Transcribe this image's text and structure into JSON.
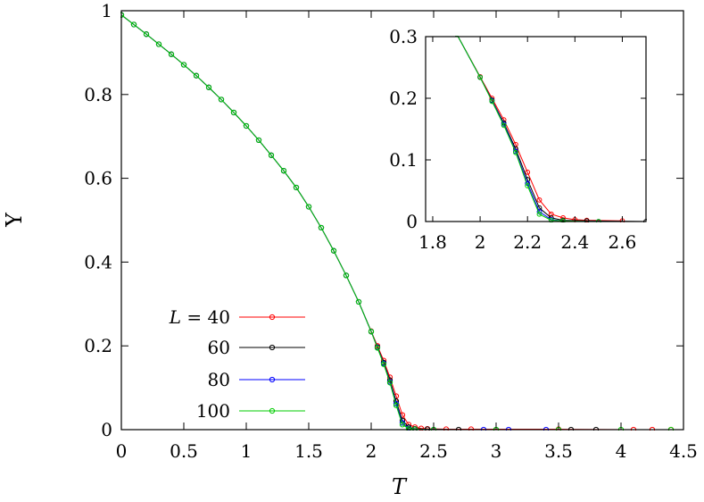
{
  "chart_data": [
    {
      "id": "main",
      "type": "line",
      "xlabel": "T",
      "ylabel": "Υ",
      "xlim": [
        0,
        4.5
      ],
      "ylim": [
        0,
        1
      ],
      "xticks": [
        0,
        0.5,
        1,
        1.5,
        2,
        2.5,
        3,
        3.5,
        4,
        4.5
      ],
      "yticks": [
        0,
        0.2,
        0.4,
        0.6,
        0.8,
        1
      ],
      "xtick_labels": [
        "0",
        "0.5",
        "1",
        "1.5",
        "2",
        "2.5",
        "3",
        "3.5",
        "4",
        "4.5"
      ],
      "ytick_labels": [
        "0",
        "0.2",
        "0.4",
        "0.6",
        "0.8",
        "1"
      ],
      "grid": false,
      "markers": "open-circle",
      "legend_position": "bottom-left",
      "legend_title": "L =",
      "series": [
        {
          "name": "40",
          "label": "L = 40",
          "color": "#ff0000",
          "points": [
            [
              0.0,
              0.99
            ],
            [
              0.1,
              0.967
            ],
            [
              0.2,
              0.944
            ],
            [
              0.3,
              0.92
            ],
            [
              0.4,
              0.896
            ],
            [
              0.5,
              0.871
            ],
            [
              0.6,
              0.845
            ],
            [
              0.7,
              0.817
            ],
            [
              0.8,
              0.788
            ],
            [
              0.9,
              0.757
            ],
            [
              1.0,
              0.725
            ],
            [
              1.1,
              0.691
            ],
            [
              1.2,
              0.655
            ],
            [
              1.3,
              0.618
            ],
            [
              1.4,
              0.578
            ],
            [
              1.5,
              0.532
            ],
            [
              1.6,
              0.482
            ],
            [
              1.7,
              0.427
            ],
            [
              1.8,
              0.368
            ],
            [
              1.9,
              0.305
            ],
            [
              2.0,
              0.235
            ],
            [
              2.05,
              0.2
            ],
            [
              2.1,
              0.165
            ],
            [
              2.15,
              0.125
            ],
            [
              2.2,
              0.08
            ],
            [
              2.25,
              0.035
            ],
            [
              2.3,
              0.012
            ],
            [
              2.35,
              0.006
            ],
            [
              2.4,
              0.003
            ],
            [
              2.45,
              0.002
            ],
            [
              2.6,
              0.001
            ],
            [
              2.8,
              0.001
            ],
            [
              3.5,
              0.001
            ],
            [
              4.1,
              0.0
            ],
            [
              4.25,
              0.0
            ],
            [
              4.4,
              0.0
            ]
          ]
        },
        {
          "name": "60",
          "color": "#000000",
          "points": [
            [
              0.0,
              0.99
            ],
            [
              0.1,
              0.967
            ],
            [
              0.2,
              0.944
            ],
            [
              0.3,
              0.92
            ],
            [
              0.4,
              0.896
            ],
            [
              0.5,
              0.871
            ],
            [
              0.6,
              0.845
            ],
            [
              0.7,
              0.817
            ],
            [
              0.8,
              0.788
            ],
            [
              0.9,
              0.757
            ],
            [
              1.0,
              0.725
            ],
            [
              1.1,
              0.691
            ],
            [
              1.2,
              0.655
            ],
            [
              1.3,
              0.618
            ],
            [
              1.4,
              0.578
            ],
            [
              1.5,
              0.532
            ],
            [
              1.6,
              0.482
            ],
            [
              1.7,
              0.427
            ],
            [
              1.8,
              0.368
            ],
            [
              1.9,
              0.305
            ],
            [
              2.0,
              0.234
            ],
            [
              2.05,
              0.197
            ],
            [
              2.1,
              0.16
            ],
            [
              2.15,
              0.118
            ],
            [
              2.2,
              0.068
            ],
            [
              2.25,
              0.022
            ],
            [
              2.3,
              0.006
            ],
            [
              2.35,
              0.002
            ],
            [
              2.45,
              0.001
            ],
            [
              2.7,
              0.0
            ],
            [
              3.0,
              0.0
            ],
            [
              3.6,
              0.0
            ],
            [
              3.8,
              0.0
            ]
          ]
        },
        {
          "name": "80",
          "color": "#0000ff",
          "points": [
            [
              0.0,
              0.99
            ],
            [
              0.1,
              0.967
            ],
            [
              0.2,
              0.944
            ],
            [
              0.3,
              0.92
            ],
            [
              0.4,
              0.896
            ],
            [
              0.5,
              0.871
            ],
            [
              0.6,
              0.845
            ],
            [
              0.7,
              0.817
            ],
            [
              0.8,
              0.788
            ],
            [
              0.9,
              0.757
            ],
            [
              1.0,
              0.725
            ],
            [
              1.1,
              0.691
            ],
            [
              1.2,
              0.655
            ],
            [
              1.3,
              0.618
            ],
            [
              1.4,
              0.578
            ],
            [
              1.5,
              0.532
            ],
            [
              1.6,
              0.482
            ],
            [
              1.7,
              0.427
            ],
            [
              1.8,
              0.368
            ],
            [
              1.9,
              0.305
            ],
            [
              2.0,
              0.234
            ],
            [
              2.05,
              0.196
            ],
            [
              2.1,
              0.158
            ],
            [
              2.15,
              0.114
            ],
            [
              2.2,
              0.062
            ],
            [
              2.25,
              0.016
            ],
            [
              2.3,
              0.003
            ],
            [
              2.35,
              0.001
            ],
            [
              2.5,
              0.0
            ],
            [
              2.9,
              0.0
            ],
            [
              3.1,
              0.0
            ],
            [
              3.4,
              0.0
            ]
          ]
        },
        {
          "name": "100",
          "color": "#00cc00",
          "points": [
            [
              0.0,
              0.99
            ],
            [
              0.1,
              0.967
            ],
            [
              0.2,
              0.944
            ],
            [
              0.3,
              0.92
            ],
            [
              0.4,
              0.896
            ],
            [
              0.5,
              0.871
            ],
            [
              0.6,
              0.845
            ],
            [
              0.7,
              0.817
            ],
            [
              0.8,
              0.788
            ],
            [
              0.9,
              0.757
            ],
            [
              1.0,
              0.725
            ],
            [
              1.1,
              0.691
            ],
            [
              1.2,
              0.655
            ],
            [
              1.3,
              0.618
            ],
            [
              1.4,
              0.578
            ],
            [
              1.5,
              0.532
            ],
            [
              1.6,
              0.482
            ],
            [
              1.7,
              0.427
            ],
            [
              1.8,
              0.368
            ],
            [
              1.9,
              0.305
            ],
            [
              2.0,
              0.234
            ],
            [
              2.05,
              0.195
            ],
            [
              2.1,
              0.156
            ],
            [
              2.15,
              0.112
            ],
            [
              2.2,
              0.058
            ],
            [
              2.25,
              0.012
            ],
            [
              2.3,
              0.002
            ],
            [
              2.35,
              0.001
            ],
            [
              2.5,
              0.0
            ],
            [
              3.0,
              0.0
            ],
            [
              3.5,
              0.0
            ],
            [
              4.0,
              0.0
            ],
            [
              4.4,
              0.0
            ]
          ]
        }
      ]
    },
    {
      "id": "inset",
      "type": "line",
      "xlim": [
        1.77,
        2.7
      ],
      "ylim": [
        0,
        0.3
      ],
      "xticks": [
        1.8,
        2,
        2.2,
        2.4,
        2.6
      ],
      "yticks": [
        0,
        0.1,
        0.2,
        0.3
      ],
      "xtick_labels": [
        "1.8",
        "2",
        "2.2",
        "2.4",
        "2.6"
      ],
      "ytick_labels": [
        "0",
        "0.1",
        "0.2",
        "0.3"
      ],
      "grid": false,
      "markers": "open-circle",
      "series_ref": "same as main"
    }
  ]
}
